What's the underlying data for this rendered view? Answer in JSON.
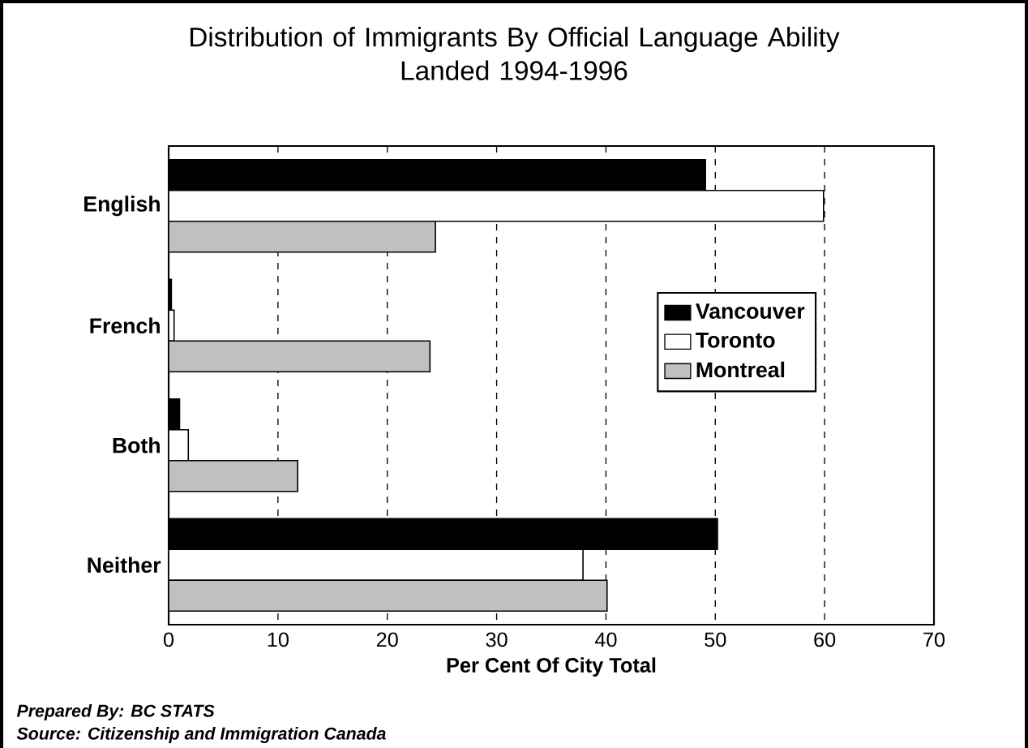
{
  "chart_data": {
    "type": "bar",
    "orientation": "horizontal",
    "title": "Distribution of Immigrants By Official Language Ability\nLanded 1994-1996",
    "xlabel": "Per Cent Of City Total",
    "categories": [
      "English",
      "French",
      "Both",
      "Neither"
    ],
    "series": [
      {
        "name": "Vancouver",
        "color": "#000000",
        "values": [
          49.1,
          0.25,
          1.0,
          50.2
        ]
      },
      {
        "name": "Toronto",
        "color": "#ffffff",
        "values": [
          59.9,
          0.5,
          1.8,
          37.9
        ]
      },
      {
        "name": "Montreal",
        "color": "#c0c0c0",
        "values": [
          24.4,
          23.9,
          11.8,
          40.1
        ]
      }
    ],
    "xlim": [
      0,
      70
    ],
    "xticks": [
      0,
      10,
      20,
      30,
      40,
      50,
      60,
      70
    ],
    "grid": "x",
    "legend": "right",
    "annotations": [
      "Prepared By: BC STATS",
      "Source: Citizenship and Immigration Canada"
    ]
  }
}
